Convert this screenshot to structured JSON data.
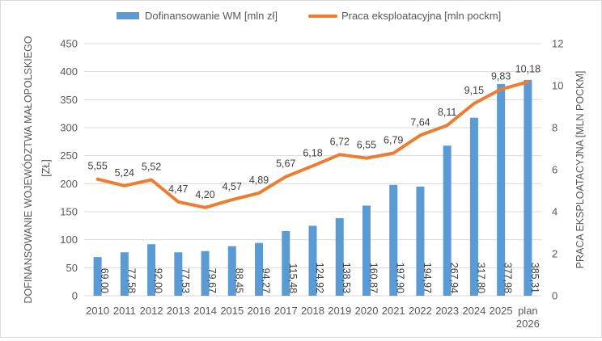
{
  "chart_data": {
    "type": "bar+line",
    "categories": [
      [
        "2010"
      ],
      [
        "2011"
      ],
      [
        "2012"
      ],
      [
        "2013"
      ],
      [
        "2014"
      ],
      [
        "2015"
      ],
      [
        "2016"
      ],
      [
        "2017"
      ],
      [
        "2018"
      ],
      [
        "2019"
      ],
      [
        "2020"
      ],
      [
        "2021"
      ],
      [
        "2022"
      ],
      [
        "2023"
      ],
      [
        "2024"
      ],
      [
        "2025"
      ],
      [
        "plan",
        "2026"
      ]
    ],
    "series": [
      {
        "name": "Dofinansowanie WM [mln zł]",
        "type": "bar",
        "axis": "left",
        "color": "#5b9bd5",
        "values": [
          69.0,
          77.58,
          92.0,
          77.53,
          79.67,
          88.45,
          94.27,
          115.48,
          124.92,
          138.53,
          160.87,
          197.9,
          194.97,
          267.94,
          317.8,
          377.98,
          385.31
        ],
        "labels": [
          "69,00",
          "77,58",
          "92,00",
          "77,53",
          "79,67",
          "88,45",
          "94,27",
          "115,48",
          "124,92",
          "138,53",
          "160,87",
          "197,90",
          "194,97",
          "267,94",
          "317,80",
          "377,98",
          "385,31"
        ]
      },
      {
        "name": "Praca eksploatacyjna [mln pockm]",
        "type": "line",
        "axis": "right",
        "color": "#ed7d31",
        "values": [
          5.55,
          5.24,
          5.52,
          4.47,
          4.2,
          4.57,
          4.89,
          5.67,
          6.18,
          6.72,
          6.55,
          6.79,
          7.64,
          8.11,
          9.15,
          9.83,
          10.18
        ],
        "labels": [
          "5,55",
          "5,24",
          "5,52",
          "4,47",
          "4,20",
          "4,57",
          "4,89",
          "5,67",
          "6,18",
          "6,72",
          "6,55",
          "6,79",
          "7,64",
          "8,11",
          "9,15",
          "9,83",
          "10,18"
        ]
      }
    ],
    "y_left": {
      "label_lines": [
        "DOFINANSOWANIE WOJEWÓDZTWA MAŁOPOLSKIEGO",
        "[ZŁ]"
      ],
      "ylim": [
        0,
        450
      ],
      "ticks": [
        "0",
        "50",
        "100",
        "150",
        "200",
        "250",
        "300",
        "350",
        "400",
        "450"
      ]
    },
    "y_right": {
      "label": "PRACA EKSPLOATACYJNA [MLN POCKM]",
      "ylim": [
        0,
        12
      ],
      "ticks": [
        "0",
        "2",
        "4",
        "6",
        "8",
        "10",
        "12"
      ]
    },
    "grid": true,
    "legend": "top",
    "colors": {
      "grid": "#d9d9d9",
      "text": "#595959"
    }
  }
}
